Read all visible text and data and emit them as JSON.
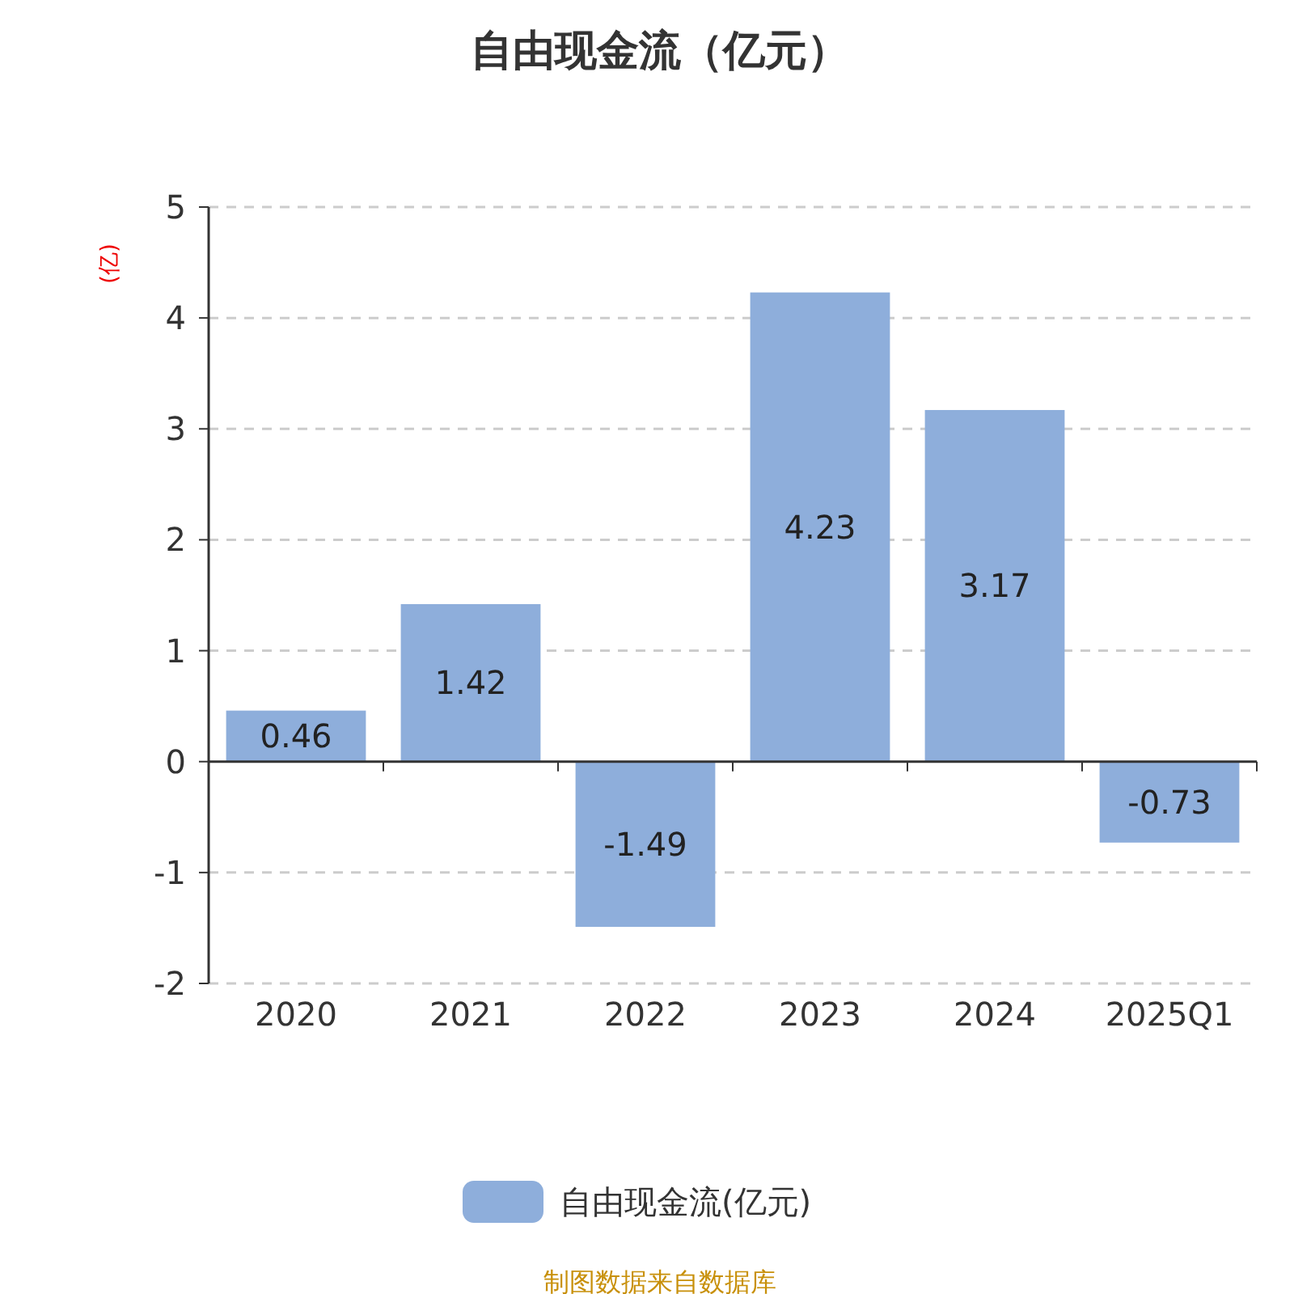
{
  "chart_data": {
    "type": "bar",
    "title": "自由现金流（亿元）",
    "ylabel": "(亿)",
    "categories": [
      "2020",
      "2021",
      "2022",
      "2023",
      "2024",
      "2025Q1"
    ],
    "series": [
      {
        "name": "自由现金流(亿元)",
        "color": "#8eaedb",
        "values": [
          0.46,
          1.42,
          -1.49,
          4.23,
          3.17,
          -0.73
        ]
      }
    ],
    "ylim": [
      -2,
      5
    ],
    "yticks": [
      -2,
      -1,
      0,
      1,
      2,
      3,
      4,
      5
    ],
    "grid": "y",
    "legend": "bottom",
    "data_labels": true,
    "annotations": [
      "制图数据来自数据库"
    ]
  }
}
